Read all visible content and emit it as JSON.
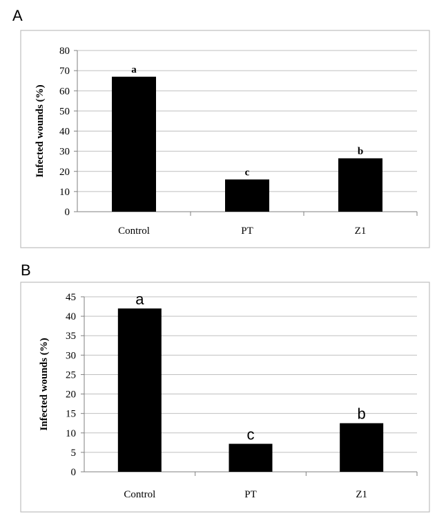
{
  "figure": {
    "panel_labels": [
      "A",
      "B"
    ]
  },
  "chart_data": [
    {
      "type": "bar",
      "panel": "A",
      "title": "",
      "xlabel": "",
      "ylabel": "Infected wounds (%)",
      "categories": [
        "Control",
        "PT",
        "Z1"
      ],
      "values": [
        67,
        16,
        26.5
      ],
      "annotations": [
        "a",
        "c",
        "b"
      ],
      "ylim": [
        0,
        80
      ],
      "yticks": [
        0,
        10,
        20,
        30,
        40,
        50,
        60,
        70,
        80
      ],
      "grid": true,
      "legend": "none",
      "bar_color": "#000000"
    },
    {
      "type": "bar",
      "panel": "B",
      "title": "",
      "xlabel": "",
      "ylabel": "Infected wounds (%)",
      "categories": [
        "Control",
        "PT",
        "Z1"
      ],
      "values": [
        42,
        7.2,
        12.5
      ],
      "annotations": [
        "a",
        "c",
        "b"
      ],
      "ylim": [
        0,
        45
      ],
      "yticks": [
        0,
        5,
        10,
        15,
        20,
        25,
        30,
        35,
        40,
        45
      ],
      "grid": true,
      "legend": "none",
      "bar_color": "#000000"
    }
  ]
}
